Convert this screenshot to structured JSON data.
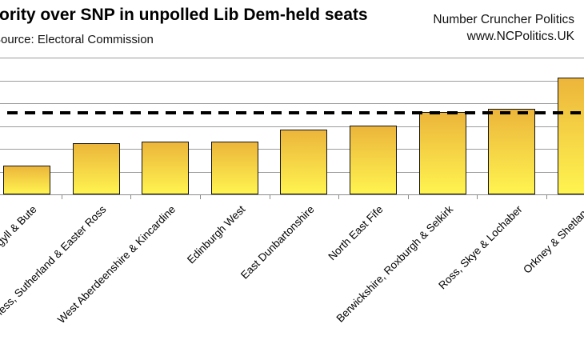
{
  "chart_data": {
    "type": "bar",
    "title": "Majority over SNP in unpolled Lib Dem-held seats",
    "source": "Source: Electoral Commission",
    "categories": [
      "Argyll & Bute",
      "Caithness, Sutherland & Easter Ross",
      "West Aberdeenshire & Kincardine",
      "Edinburgh West",
      "East Dunbartonshire",
      "North East Fife",
      "Berwickshire, Roxburgh & Selkirk",
      "Ross, Skye & Lochaber",
      "Orkney & Shetland"
    ],
    "values": [
      12.8,
      22.5,
      23.2,
      23.2,
      28.4,
      30.4,
      36.2,
      37.8,
      51.4
    ],
    "reference_line": 36.0,
    "ylim": [
      0,
      60
    ],
    "gridline_step": 10,
    "grid": true,
    "legend": false,
    "x_label_rotation_deg": 45,
    "y_tick_labels_visible": false,
    "colors": {
      "bar_top": "#ECB53B",
      "bar_bottom": "#FFF450",
      "bar_border": "#141414",
      "gridline": "#9B9B9B",
      "axis": "#8C8C8C",
      "reference_line": "#000000",
      "text": "#000000",
      "background": "#FFFFFF"
    }
  },
  "branding": {
    "name": "Number Cruncher Politics",
    "url": "www.NCPolitics.UK"
  }
}
